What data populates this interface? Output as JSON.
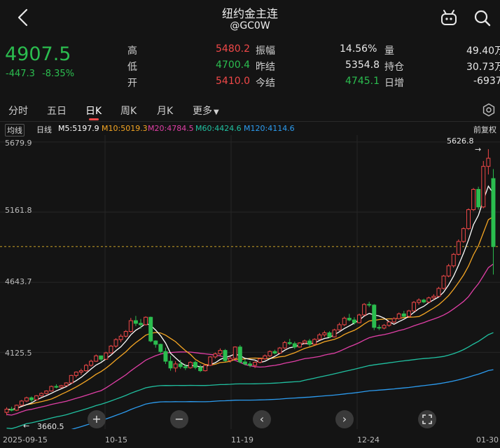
{
  "header": {
    "title": "纽约金主连",
    "subtitle": "@GC0W"
  },
  "quote": {
    "price": "4907.5",
    "change": "-447.3",
    "change_pct": "-8.35%"
  },
  "stats": {
    "high_label": "高",
    "high": "5480.2",
    "low_label": "低",
    "low": "4700.4",
    "open_label": "开",
    "open": "5410.0",
    "amp_label": "振幅",
    "amp": "14.56%",
    "prev_label": "昨结",
    "prev": "5354.8",
    "settle_label": "今结",
    "settle": "4745.1",
    "vol_label": "量",
    "vol": "49.40万",
    "oi_label": "持仓",
    "oi": "30.73万",
    "daily_label": "日增",
    "daily": "-6937"
  },
  "tabs": [
    "分时",
    "五日",
    "日K",
    "周K",
    "月K",
    "更多"
  ],
  "active_tab": "日K",
  "ma_bar": {
    "ma_type": "均线",
    "day_line": "日线",
    "m5": "M5:5197.9",
    "m10": "M10:5019.3",
    "m20": "M20:4784.5",
    "m60": "M60:4424.6",
    "m120": "M120:4114.6",
    "adjust": "前复权"
  },
  "colors": {
    "up": "#f04848",
    "down": "#2bbd4f",
    "m5": "#ffffff",
    "m10": "#f5a623",
    "m20": "#e03fa6",
    "m60": "#20c0a0",
    "m120": "#2c9cf0"
  },
  "chart_data": {
    "type": "candlestick",
    "y_ticks": [
      "5679.9",
      "5161.8",
      "4643.7",
      "4125.5"
    ],
    "x_ticks": [
      "2025-09-15",
      "10-15",
      "11-19",
      "12-24",
      "01-30"
    ],
    "ylim": [
      3600,
      5700
    ],
    "max_label": "5626.8",
    "min_label": "3660.5",
    "ohlc": [
      [
        3682,
        3720,
        3660.5,
        3706
      ],
      [
        3706,
        3724,
        3690,
        3698
      ],
      [
        3698,
        3740,
        3692,
        3735
      ],
      [
        3735,
        3774,
        3730,
        3766
      ],
      [
        3766,
        3798,
        3758,
        3790
      ],
      [
        3790,
        3800,
        3760,
        3775
      ],
      [
        3775,
        3810,
        3770,
        3805
      ],
      [
        3805,
        3830,
        3798,
        3822
      ],
      [
        3822,
        3845,
        3815,
        3840
      ],
      [
        3840,
        3880,
        3836,
        3874
      ],
      [
        3874,
        3890,
        3860,
        3868
      ],
      [
        3868,
        3885,
        3862,
        3880
      ],
      [
        3880,
        3905,
        3876,
        3900
      ],
      [
        3900,
        3960,
        3895,
        3955
      ],
      [
        3955,
        3985,
        3940,
        3980
      ],
      [
        3980,
        4005,
        3960,
        3990
      ],
      [
        3990,
        4040,
        3982,
        4030
      ],
      [
        4030,
        4072,
        4020,
        4060
      ],
      [
        4060,
        4110,
        4055,
        4100
      ],
      [
        4100,
        4090,
        4060,
        4075
      ],
      [
        4075,
        4130,
        4070,
        4122
      ],
      [
        4122,
        4180,
        4118,
        4172
      ],
      [
        4172,
        4230,
        4160,
        4220
      ],
      [
        4220,
        4260,
        4200,
        4245
      ],
      [
        4245,
        4290,
        4235,
        4280
      ],
      [
        4280,
        4380,
        4270,
        4360
      ],
      [
        4360,
        4395,
        4320,
        4340
      ],
      [
        4340,
        4372,
        4300,
        4330
      ],
      [
        4330,
        4392,
        4325,
        4385
      ],
      [
        4385,
        4390,
        4200,
        4210
      ],
      [
        4210,
        4215,
        4160,
        4185
      ],
      [
        4185,
        4190,
        4120,
        4132
      ],
      [
        4132,
        4160,
        4040,
        4060
      ],
      [
        4060,
        4100,
        3990,
        4010
      ],
      [
        4010,
        4060,
        3980,
        4040
      ],
      [
        4040,
        4070,
        4005,
        4020
      ],
      [
        4020,
        4040,
        3995,
        4012
      ],
      [
        4012,
        4060,
        4005,
        4052
      ],
      [
        4052,
        4065,
        4000,
        4015
      ],
      [
        4015,
        4035,
        3980,
        3990
      ],
      [
        3990,
        4035,
        3985,
        4030
      ],
      [
        4030,
        4098,
        4025,
        4092
      ],
      [
        4092,
        4125,
        4080,
        4115
      ],
      [
        4115,
        4155,
        4100,
        4140
      ],
      [
        4140,
        4150,
        4055,
        4065
      ],
      [
        4065,
        4095,
        4050,
        4082
      ],
      [
        4082,
        4170,
        4078,
        4165
      ],
      [
        4165,
        4180,
        4045,
        4055
      ],
      [
        4055,
        4075,
        4030,
        4040
      ],
      [
        4040,
        4060,
        4015,
        4030
      ],
      [
        4030,
        4060,
        4010,
        4052
      ],
      [
        4052,
        4085,
        4045,
        4078
      ],
      [
        4078,
        4110,
        4070,
        4100
      ],
      [
        4100,
        4140,
        4092,
        4132
      ],
      [
        4132,
        4145,
        4110,
        4120
      ],
      [
        4120,
        4165,
        4115,
        4158
      ],
      [
        4158,
        4210,
        4150,
        4198
      ],
      [
        4198,
        4225,
        4180,
        4190
      ],
      [
        4190,
        4205,
        4150,
        4165
      ],
      [
        4165,
        4200,
        4160,
        4195
      ],
      [
        4195,
        4220,
        4185,
        4210
      ],
      [
        4210,
        4225,
        4170,
        4185
      ],
      [
        4185,
        4230,
        4180,
        4222
      ],
      [
        4222,
        4268,
        4215,
        4255
      ],
      [
        4255,
        4285,
        4240,
        4270
      ],
      [
        4270,
        4282,
        4232,
        4240
      ],
      [
        4240,
        4300,
        4236,
        4292
      ],
      [
        4292,
        4345,
        4285,
        4330
      ],
      [
        4330,
        4390,
        4320,
        4378
      ],
      [
        4378,
        4410,
        4355,
        4365
      ],
      [
        4365,
        4385,
        4330,
        4345
      ],
      [
        4345,
        4412,
        4340,
        4402
      ],
      [
        4402,
        4490,
        4395,
        4480
      ],
      [
        4480,
        4500,
        4460,
        4475
      ],
      [
        4475,
        4482,
        4290,
        4310
      ],
      [
        4310,
        4330,
        4290,
        4305
      ],
      [
        4305,
        4335,
        4296,
        4325
      ],
      [
        4325,
        4358,
        4315,
        4350
      ],
      [
        4350,
        4385,
        4340,
        4375
      ],
      [
        4375,
        4420,
        4368,
        4410
      ],
      [
        4410,
        4432,
        4385,
        4392
      ],
      [
        4392,
        4440,
        4385,
        4432
      ],
      [
        4432,
        4505,
        4428,
        4495
      ],
      [
        4495,
        4525,
        4478,
        4512
      ],
      [
        4512,
        4522,
        4488,
        4498
      ],
      [
        4498,
        4538,
        4490,
        4528
      ],
      [
        4528,
        4555,
        4515,
        4540
      ],
      [
        4540,
        4610,
        4535,
        4598
      ],
      [
        4598,
        4698,
        4590,
        4690
      ],
      [
        4690,
        4780,
        4680,
        4765
      ],
      [
        4765,
        4860,
        4752,
        4850
      ],
      [
        4850,
        4960,
        4842,
        4945
      ],
      [
        4945,
        5050,
        4935,
        5040
      ],
      [
        5040,
        5190,
        5030,
        5180
      ],
      [
        5180,
        5340,
        5170,
        5330
      ],
      [
        5330,
        5350,
        5180,
        5200
      ],
      [
        5200,
        5540,
        5190,
        5500
      ],
      [
        5500,
        5626.8,
        5440,
        5560
      ],
      [
        5410,
        5480.2,
        4700.4,
        4907.5
      ]
    ]
  },
  "controls": {
    "zoom_in": "+",
    "zoom_out": "−",
    "prev": "‹",
    "next": "›"
  }
}
